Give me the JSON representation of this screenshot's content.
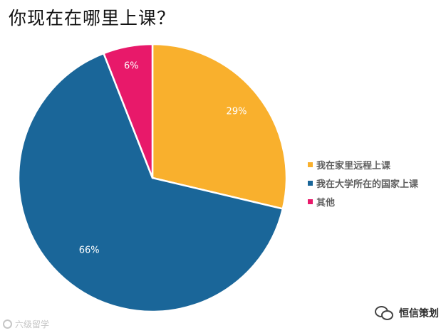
{
  "page": {
    "title": "你现在在哪里上课？"
  },
  "chart_data": {
    "type": "pie",
    "title": "你现在在哪里上课？",
    "categories": [
      "我在家里远程上课",
      "我在大学所在的国家上课",
      "其他"
    ],
    "values": [
      29,
      66,
      6
    ],
    "labels": [
      "29%",
      "66%",
      "6%"
    ],
    "colors": [
      "#f9b02d",
      "#1a6699",
      "#e8196a"
    ],
    "legend_position": "right"
  },
  "watermarks": {
    "left": "六级留学",
    "right": "恒信策划",
    "left_icon": "ring-icon",
    "right_icon": "wechat-icon"
  }
}
